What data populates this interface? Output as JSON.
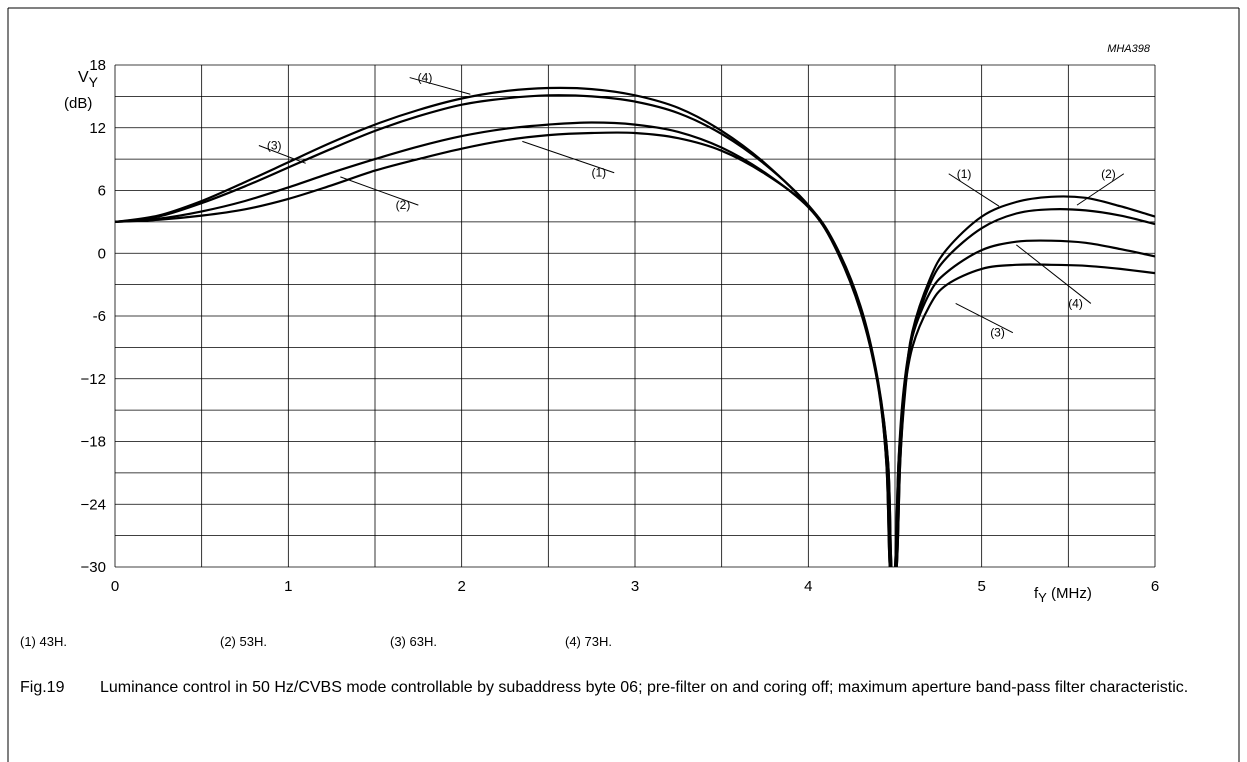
{
  "figure_code": "MHA398",
  "chart_data": {
    "type": "line",
    "xlabel_main": "f",
    "xlabel_sub": "Y",
    "xlabel_unit": " (MHz)",
    "ylabel_main": "V",
    "ylabel_sub": "Y",
    "ylabel_unit": "(dB)",
    "xlim": [
      0,
      6
    ],
    "ylim": [
      -30,
      18
    ],
    "x_ticks": [
      {
        "value": 0,
        "label": "0"
      },
      {
        "value": 1,
        "label": "1"
      },
      {
        "value": 2,
        "label": "2"
      },
      {
        "value": 3,
        "label": "3"
      },
      {
        "value": 4,
        "label": "4"
      },
      {
        "value": 5,
        "label": "5"
      },
      {
        "value": 6,
        "label": "6"
      }
    ],
    "y_ticks": [
      {
        "value": 18,
        "label": "18"
      },
      {
        "value": 12,
        "label": "12"
      },
      {
        "value": 6,
        "label": "6"
      },
      {
        "value": 0,
        "label": "0"
      },
      {
        "value": -6,
        "label": "-6"
      },
      {
        "value": -12,
        "label": "−12"
      },
      {
        "value": -18,
        "label": "−18"
      },
      {
        "value": -24,
        "label": "−24"
      },
      {
        "value": -30,
        "label": "−30"
      }
    ],
    "grid": {
      "x_step": 0.5,
      "y_step": 3
    },
    "series": [
      {
        "label": "(1)",
        "x": [
          0,
          0.25,
          0.5,
          0.75,
          1.0,
          1.25,
          1.5,
          1.75,
          2.0,
          2.25,
          2.5,
          2.75,
          3.0,
          3.25,
          3.5,
          3.75,
          4.0,
          4.15,
          4.3,
          4.4,
          4.46,
          4.48,
          4.51,
          4.53,
          4.56,
          4.6,
          4.7,
          4.8,
          5.0,
          5.2,
          5.4,
          5.6,
          5.8,
          6.0
        ],
        "values": [
          3.0,
          3.2,
          3.6,
          4.2,
          5.2,
          6.5,
          7.9,
          9.0,
          10.0,
          10.8,
          11.3,
          11.5,
          11.5,
          11.0,
          9.8,
          7.6,
          4.5,
          1.0,
          -5.0,
          -12.0,
          -20.0,
          -30.0,
          -30.0,
          -20.0,
          -13.0,
          -8.0,
          -3.0,
          -0.4,
          2.4,
          3.8,
          4.2,
          4.1,
          3.6,
          2.8
        ]
      },
      {
        "label": "(2)",
        "x": [
          0,
          0.25,
          0.5,
          0.75,
          1.0,
          1.25,
          1.5,
          1.75,
          2.0,
          2.25,
          2.5,
          2.75,
          3.0,
          3.25,
          3.5,
          3.75,
          4.0,
          4.15,
          4.3,
          4.4,
          4.46,
          4.48,
          4.51,
          4.53,
          4.56,
          4.6,
          4.7,
          4.8,
          5.0,
          5.2,
          5.4,
          5.6,
          5.8,
          6.0
        ],
        "values": [
          3.0,
          3.3,
          4.0,
          5.0,
          6.3,
          7.7,
          9.0,
          10.2,
          11.2,
          11.9,
          12.3,
          12.5,
          12.3,
          11.6,
          10.1,
          7.7,
          4.4,
          0.8,
          -5.2,
          -12.2,
          -20.0,
          -30.0,
          -30.0,
          -20.0,
          -12.5,
          -7.5,
          -2.5,
          0.4,
          3.5,
          4.9,
          5.4,
          5.3,
          4.5,
          3.5
        ]
      },
      {
        "label": "(3)",
        "x": [
          0,
          0.25,
          0.5,
          0.75,
          1.0,
          1.25,
          1.5,
          1.75,
          2.0,
          2.25,
          2.5,
          2.75,
          3.0,
          3.25,
          3.5,
          3.75,
          4.0,
          4.15,
          4.3,
          4.4,
          4.45,
          4.47,
          4.5,
          4.52,
          4.55,
          4.6,
          4.7,
          4.8,
          5.0,
          5.2,
          5.4,
          5.6,
          5.8,
          6.0
        ],
        "values": [
          3.0,
          3.6,
          5.0,
          6.8,
          8.7,
          10.6,
          12.3,
          13.7,
          14.8,
          15.5,
          15.8,
          15.7,
          15.1,
          13.9,
          11.7,
          8.6,
          4.5,
          0.7,
          -5.5,
          -12.5,
          -20.0,
          -30.0,
          -30.0,
          -20.0,
          -14.0,
          -9.0,
          -5.0,
          -3.0,
          -1.5,
          -1.1,
          -1.1,
          -1.2,
          -1.5,
          -1.9
        ]
      },
      {
        "label": "(4)",
        "x": [
          0,
          0.25,
          0.5,
          0.75,
          1.0,
          1.25,
          1.5,
          1.75,
          2.0,
          2.25,
          2.5,
          2.75,
          3.0,
          3.25,
          3.5,
          3.75,
          4.0,
          4.15,
          4.3,
          4.4,
          4.45,
          4.47,
          4.5,
          4.52,
          4.55,
          4.6,
          4.7,
          4.8,
          5.0,
          5.2,
          5.4,
          5.6,
          5.8,
          6.0
        ],
        "values": [
          3.0,
          3.5,
          4.8,
          6.4,
          8.2,
          10.0,
          11.7,
          13.1,
          14.2,
          14.8,
          15.1,
          15.0,
          14.5,
          13.4,
          11.4,
          8.5,
          4.6,
          0.9,
          -5.3,
          -12.3,
          -20.0,
          -30.0,
          -30.0,
          -20.0,
          -13.0,
          -8.0,
          -3.8,
          -1.8,
          0.3,
          1.1,
          1.2,
          1.0,
          0.4,
          -0.3
        ]
      }
    ],
    "annotations": [
      {
        "text": "(1)",
        "x": 2.88,
        "y": 7.7,
        "tx": 2.35,
        "ty": 10.7
      },
      {
        "text": "(2)",
        "x": 1.75,
        "y": 4.6,
        "tx": 1.3,
        "ty": 7.3
      },
      {
        "text": "(3)",
        "x": 0.83,
        "y": 10.3,
        "tx": 1.1,
        "ty": 8.6
      },
      {
        "text": "(4)",
        "x": 1.7,
        "y": 16.8,
        "tx": 2.05,
        "ty": 15.2
      },
      {
        "text": "(1)",
        "x": 4.81,
        "y": 7.6,
        "tx": 5.1,
        "ty": 4.5
      },
      {
        "text": "(2)",
        "x": 5.82,
        "y": 7.6,
        "tx": 5.55,
        "ty": 4.6
      },
      {
        "text": "(4)",
        "x": 5.63,
        "y": -4.8,
        "tx": 5.2,
        "ty": 0.8
      },
      {
        "text": "(3)",
        "x": 5.18,
        "y": -7.6,
        "tx": 4.85,
        "ty": -4.8
      }
    ]
  },
  "legend": [
    "(1)  43H.",
    "(2)  53H.",
    "(3)  63H.",
    "(4)  73H."
  ],
  "caption": {
    "figure": "Fig.19",
    "text": "Luminance control in 50 Hz/CVBS mode controllable by subaddress byte 06; pre-filter on and coring off; maximum aperture band-pass filter characteristic."
  }
}
